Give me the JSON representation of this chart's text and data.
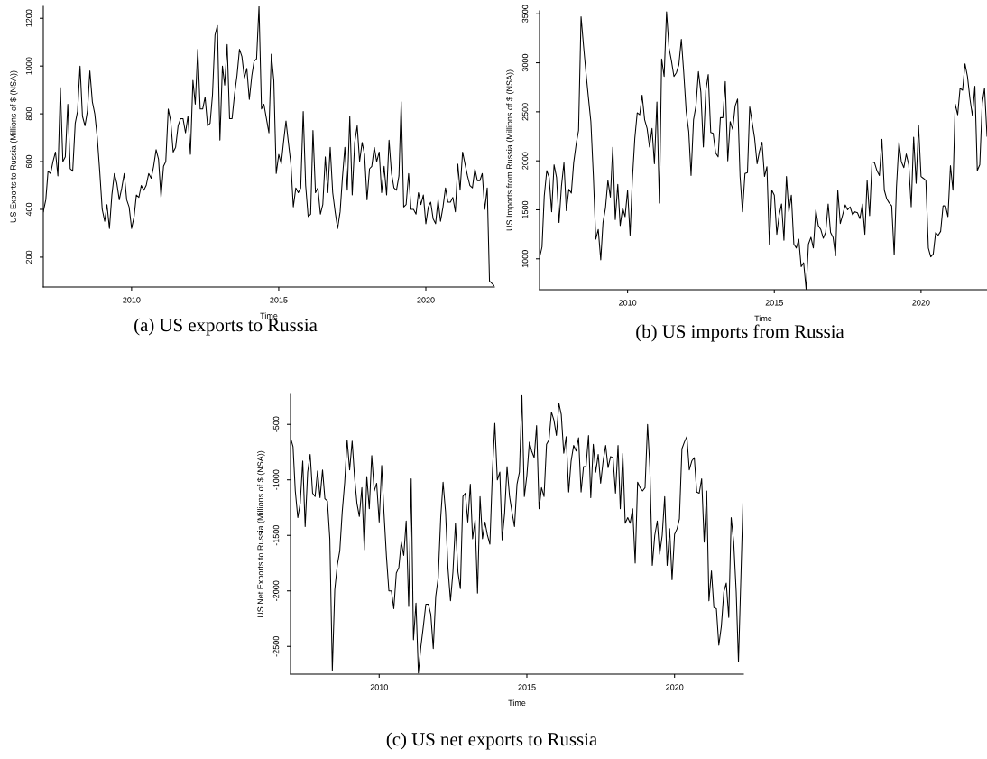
{
  "chart_data": [
    {
      "type": "line",
      "title": "(a) US exports to Russia",
      "xlabel": "Time",
      "ylabel": "US Exports to Russia (Millions of $ (NSA))",
      "x": [
        "2007-01",
        "2007-02",
        "2007-03",
        "2007-04",
        "2007-05",
        "2007-06",
        "2007-07",
        "2007-08",
        "2007-09",
        "2007-10",
        "2007-11",
        "2007-12",
        "2008-01",
        "2008-02",
        "2008-03",
        "2008-04",
        "2008-05",
        "2008-06",
        "2008-07",
        "2008-08",
        "2008-09",
        "2008-10",
        "2008-11",
        "2008-12",
        "2009-01",
        "2009-02",
        "2009-03",
        "2009-04",
        "2009-05",
        "2009-06",
        "2009-07",
        "2009-08",
        "2009-09",
        "2009-10",
        "2009-11",
        "2009-12",
        "2010-01",
        "2010-02",
        "2010-03",
        "2010-04",
        "2010-05",
        "2010-06",
        "2010-07",
        "2010-08",
        "2010-09",
        "2010-10",
        "2010-11",
        "2010-12",
        "2011-01",
        "2011-02",
        "2011-03",
        "2011-04",
        "2011-05",
        "2011-06",
        "2011-07",
        "2011-08",
        "2011-09",
        "2011-10",
        "2011-11",
        "2011-12",
        "2012-01",
        "2012-02",
        "2012-03",
        "2012-04",
        "2012-05",
        "2012-06",
        "2012-07",
        "2012-08",
        "2012-09",
        "2012-10",
        "2012-11",
        "2012-12",
        "2013-01",
        "2013-02",
        "2013-03",
        "2013-04",
        "2013-05",
        "2013-06",
        "2013-07",
        "2013-08",
        "2013-09",
        "2013-10",
        "2013-11",
        "2013-12",
        "2014-01",
        "2014-02",
        "2014-03",
        "2014-04",
        "2014-05",
        "2014-06",
        "2014-07",
        "2014-08",
        "2014-09",
        "2014-10",
        "2014-11",
        "2014-12",
        "2015-01",
        "2015-02",
        "2015-03",
        "2015-04",
        "2015-05",
        "2015-06",
        "2015-07",
        "2015-08",
        "2015-09",
        "2015-10",
        "2015-11",
        "2015-12",
        "2016-01",
        "2016-02",
        "2016-03",
        "2016-04",
        "2016-05",
        "2016-06",
        "2016-07",
        "2016-08",
        "2016-09",
        "2016-10",
        "2016-11",
        "2016-12",
        "2017-01",
        "2017-02",
        "2017-03",
        "2017-04",
        "2017-05",
        "2017-06",
        "2017-07",
        "2017-08",
        "2017-09",
        "2017-10",
        "2017-11",
        "2017-12",
        "2018-01",
        "2018-02",
        "2018-03",
        "2018-04",
        "2018-05",
        "2018-06",
        "2018-07",
        "2018-08",
        "2018-09",
        "2018-10",
        "2018-11",
        "2018-12",
        "2019-01",
        "2019-02",
        "2019-03",
        "2019-04",
        "2019-05",
        "2019-06",
        "2019-07",
        "2019-08",
        "2019-09",
        "2019-10",
        "2019-11",
        "2019-12",
        "2020-01",
        "2020-02",
        "2020-03",
        "2020-04",
        "2020-05",
        "2020-06",
        "2020-07",
        "2020-08",
        "2020-09",
        "2020-10",
        "2020-11",
        "2020-12",
        "2021-01",
        "2021-02",
        "2021-03",
        "2021-04",
        "2021-05",
        "2021-06",
        "2021-07",
        "2021-08",
        "2021-09",
        "2021-10",
        "2021-11",
        "2021-12",
        "2022-01",
        "2022-02",
        "2022-03",
        "2022-04",
        "2022-05"
      ],
      "series": [
        {
          "color": "#000000",
          "values": [
            390,
            440,
            560,
            550,
            600,
            640,
            540,
            910,
            600,
            620,
            840,
            570,
            560,
            760,
            810,
            1000,
            790,
            750,
            810,
            980,
            850,
            800,
            700,
            560,
            400,
            350,
            420,
            320,
            460,
            550,
            510,
            440,
            490,
            550,
            440,
            410,
            320,
            370,
            460,
            450,
            500,
            480,
            500,
            550,
            530,
            580,
            650,
            610,
            450,
            580,
            600,
            820,
            770,
            640,
            660,
            750,
            780,
            780,
            720,
            790,
            630,
            940,
            840,
            1070,
            820,
            820,
            870,
            750,
            760,
            880,
            1130,
            1170,
            690,
            1000,
            920,
            1090,
            780,
            780,
            880,
            960,
            1070,
            1040,
            950,
            990,
            860,
            960,
            1020,
            1030,
            1250,
            820,
            840,
            780,
            720,
            1050,
            940,
            550,
            630,
            590,
            680,
            770,
            680,
            590,
            410,
            490,
            470,
            490,
            810,
            500,
            370,
            380,
            730,
            470,
            490,
            380,
            420,
            620,
            470,
            660,
            470,
            390,
            320,
            390,
            530,
            660,
            480,
            790,
            460,
            680,
            750,
            600,
            680,
            630,
            440,
            570,
            580,
            660,
            600,
            640,
            470,
            580,
            460,
            690,
            550,
            490,
            480,
            540,
            850,
            410,
            420,
            550,
            400,
            400,
            380,
            470,
            420,
            460,
            340,
            410,
            430,
            360,
            340,
            440,
            350,
            410,
            490,
            430,
            430,
            450,
            390,
            590,
            480,
            640,
            590,
            540,
            500,
            490,
            570,
            520,
            520,
            550,
            400,
            490,
            100,
            90,
            80
          ]
        }
      ],
      "xlim": [
        "2007-01",
        "2022-05"
      ],
      "xticks": [
        {
          "value": "2010-01",
          "label": "2010"
        },
        {
          "value": "2015-01",
          "label": "2015"
        },
        {
          "value": "2020-01",
          "label": "2020"
        }
      ],
      "ylim": [
        75,
        1250
      ],
      "yticks": [
        200,
        400,
        600,
        800,
        1000,
        1200
      ]
    },
    {
      "type": "line",
      "title": "(b) US imports from Russia",
      "xlabel": "Time",
      "ylabel": "US Imports from Russia (Millions of $ (NSA))",
      "x": [
        "2007-01",
        "2007-02",
        "2007-03",
        "2007-04",
        "2007-05",
        "2007-06",
        "2007-07",
        "2007-08",
        "2007-09",
        "2007-10",
        "2007-11",
        "2007-12",
        "2008-01",
        "2008-02",
        "2008-03",
        "2008-04",
        "2008-05",
        "2008-06",
        "2008-07",
        "2008-08",
        "2008-09",
        "2008-10",
        "2008-11",
        "2008-12",
        "2009-01",
        "2009-02",
        "2009-03",
        "2009-04",
        "2009-05",
        "2009-06",
        "2009-07",
        "2009-08",
        "2009-09",
        "2009-10",
        "2009-11",
        "2009-12",
        "2010-01",
        "2010-02",
        "2010-03",
        "2010-04",
        "2010-05",
        "2010-06",
        "2010-07",
        "2010-08",
        "2010-09",
        "2010-10",
        "2010-11",
        "2010-12",
        "2011-01",
        "2011-02",
        "2011-03",
        "2011-04",
        "2011-05",
        "2011-06",
        "2011-07",
        "2011-08",
        "2011-09",
        "2011-10",
        "2011-11",
        "2011-12",
        "2012-01",
        "2012-02",
        "2012-03",
        "2012-04",
        "2012-05",
        "2012-06",
        "2012-07",
        "2012-08",
        "2012-09",
        "2012-10",
        "2012-11",
        "2012-12",
        "2013-01",
        "2013-02",
        "2013-03",
        "2013-04",
        "2013-05",
        "2013-06",
        "2013-07",
        "2013-08",
        "2013-09",
        "2013-10",
        "2013-11",
        "2013-12",
        "2014-01",
        "2014-02",
        "2014-03",
        "2014-04",
        "2014-05",
        "2014-06",
        "2014-07",
        "2014-08",
        "2014-09",
        "2014-10",
        "2014-11",
        "2014-12",
        "2015-01",
        "2015-02",
        "2015-03",
        "2015-04",
        "2015-05",
        "2015-06",
        "2015-07",
        "2015-08",
        "2015-09",
        "2015-10",
        "2015-11",
        "2015-12",
        "2016-01",
        "2016-02",
        "2016-03",
        "2016-04",
        "2016-05",
        "2016-06",
        "2016-07",
        "2016-08",
        "2016-09",
        "2016-10",
        "2016-11",
        "2016-12",
        "2017-01",
        "2017-02",
        "2017-03",
        "2017-04",
        "2017-05",
        "2017-06",
        "2017-07",
        "2017-08",
        "2017-09",
        "2017-10",
        "2017-11",
        "2017-12",
        "2018-01",
        "2018-02",
        "2018-03",
        "2018-04",
        "2018-05",
        "2018-06",
        "2018-07",
        "2018-08",
        "2018-09",
        "2018-10",
        "2018-11",
        "2018-12",
        "2019-01",
        "2019-02",
        "2019-03",
        "2019-04",
        "2019-05",
        "2019-06",
        "2019-07",
        "2019-08",
        "2019-09",
        "2019-10",
        "2019-11",
        "2019-12",
        "2020-01",
        "2020-02",
        "2020-03",
        "2020-04",
        "2020-05",
        "2020-06",
        "2020-07",
        "2020-08",
        "2020-09",
        "2020-10",
        "2020-11",
        "2020-12",
        "2021-01",
        "2021-02",
        "2021-03",
        "2021-04",
        "2021-05",
        "2021-06",
        "2021-07",
        "2021-08",
        "2021-09",
        "2021-10",
        "2021-11",
        "2021-12",
        "2022-01",
        "2022-02",
        "2022-03",
        "2022-04"
      ],
      "series": [
        {
          "color": "#000000",
          "values": [
            1010,
            1120,
            1640,
            1900,
            1830,
            1480,
            1960,
            1830,
            1370,
            1740,
            1980,
            1490,
            1710,
            1670,
            1980,
            2170,
            2310,
            3470,
            3180,
            2900,
            2640,
            2400,
            1850,
            1200,
            1300,
            990,
            1370,
            1520,
            1800,
            1630,
            2140,
            1400,
            1760,
            1340,
            1520,
            1430,
            1700,
            1240,
            1800,
            2230,
            2490,
            2470,
            2670,
            2420,
            2330,
            2140,
            2330,
            1970,
            2600,
            1570,
            3040,
            2860,
            3520,
            3150,
            3020,
            2860,
            2900,
            2980,
            3240,
            2900,
            2500,
            2300,
            1850,
            2420,
            2560,
            2910,
            2700,
            2140,
            2720,
            2880,
            2290,
            2280,
            2080,
            2040,
            2440,
            2440,
            2810,
            2000,
            2400,
            2320,
            2560,
            2630,
            1840,
            1480,
            1870,
            1880,
            2550,
            2390,
            2230,
            1970,
            2100,
            2190,
            1840,
            1940,
            1150,
            1700,
            1650,
            1250,
            1440,
            1560,
            1190,
            1840,
            1480,
            1650,
            1150,
            1110,
            1200,
            920,
            960,
            690,
            1150,
            1220,
            1110,
            1500,
            1340,
            1300,
            1210,
            1270,
            1560,
            1270,
            1220,
            1030,
            1700,
            1360,
            1450,
            1550,
            1500,
            1530,
            1450,
            1480,
            1470,
            1410,
            1560,
            1250,
            1800,
            1440,
            1990,
            1980,
            1900,
            1850,
            2220,
            1700,
            1610,
            1570,
            1540,
            1040,
            1730,
            2190,
            1990,
            1930,
            2070,
            1960,
            1530,
            2240,
            1770,
            2360,
            1840,
            1820,
            1800,
            1110,
            1020,
            1050,
            1270,
            1240,
            1280,
            1540,
            1540,
            1430,
            1950,
            1700,
            2580,
            2470,
            2740,
            2720,
            2990,
            2860,
            2630,
            2460,
            2760,
            1900,
            1960,
            2590,
            2740,
            2250
          ]
        }
      ],
      "xlim": [
        "2007-01",
        "2022-04"
      ],
      "xticks": [
        {
          "value": "2010-01",
          "label": "2010"
        },
        {
          "value": "2015-01",
          "label": "2015"
        },
        {
          "value": "2020-01",
          "label": "2020"
        }
      ],
      "ylim": [
        685,
        3530
      ],
      "yticks": [
        1000,
        1500,
        2000,
        2500,
        3000,
        3500
      ]
    },
    {
      "type": "line",
      "title": "(c) US net exports to Russia",
      "xlabel": "Time",
      "ylabel": "US Net Exports to Russia (Millions of $ (NSA))",
      "x": [
        "2007-01",
        "2007-02",
        "2007-03",
        "2007-04",
        "2007-05",
        "2007-06",
        "2007-07",
        "2007-08",
        "2007-09",
        "2007-10",
        "2007-11",
        "2007-12",
        "2008-01",
        "2008-02",
        "2008-03",
        "2008-04",
        "2008-05",
        "2008-06",
        "2008-07",
        "2008-08",
        "2008-09",
        "2008-10",
        "2008-11",
        "2008-12",
        "2009-01",
        "2009-02",
        "2009-03",
        "2009-04",
        "2009-05",
        "2009-06",
        "2009-07",
        "2009-08",
        "2009-09",
        "2009-10",
        "2009-11",
        "2009-12",
        "2010-01",
        "2010-02",
        "2010-03",
        "2010-04",
        "2010-05",
        "2010-06",
        "2010-07",
        "2010-08",
        "2010-09",
        "2010-10",
        "2010-11",
        "2010-12",
        "2011-01",
        "2011-02",
        "2011-03",
        "2011-04",
        "2011-05",
        "2011-06",
        "2011-07",
        "2011-08",
        "2011-09",
        "2011-10",
        "2011-11",
        "2011-12",
        "2012-01",
        "2012-02",
        "2012-03",
        "2012-04",
        "2012-05",
        "2012-06",
        "2012-07",
        "2012-08",
        "2012-09",
        "2012-10",
        "2012-11",
        "2012-12",
        "2013-01",
        "2013-02",
        "2013-03",
        "2013-04",
        "2013-05",
        "2013-06",
        "2013-07",
        "2013-08",
        "2013-09",
        "2013-10",
        "2013-11",
        "2013-12",
        "2014-01",
        "2014-02",
        "2014-03",
        "2014-04",
        "2014-05",
        "2014-06",
        "2014-07",
        "2014-08",
        "2014-09",
        "2014-10",
        "2014-11",
        "2014-12",
        "2015-01",
        "2015-02",
        "2015-03",
        "2015-04",
        "2015-05",
        "2015-06",
        "2015-07",
        "2015-08",
        "2015-09",
        "2015-10",
        "2015-11",
        "2015-12",
        "2016-01",
        "2016-02",
        "2016-03",
        "2016-04",
        "2016-05",
        "2016-06",
        "2016-07",
        "2016-08",
        "2016-09",
        "2016-10",
        "2016-11",
        "2016-12",
        "2017-01",
        "2017-02",
        "2017-03",
        "2017-04",
        "2017-05",
        "2017-06",
        "2017-07",
        "2017-08",
        "2017-09",
        "2017-10",
        "2017-11",
        "2017-12",
        "2018-01",
        "2018-02",
        "2018-03",
        "2018-04",
        "2018-05",
        "2018-06",
        "2018-07",
        "2018-08",
        "2018-09",
        "2018-10",
        "2018-11",
        "2018-12",
        "2019-01",
        "2019-02",
        "2019-03",
        "2019-04",
        "2019-05",
        "2019-06",
        "2019-07",
        "2019-08",
        "2019-09",
        "2019-10",
        "2019-11",
        "2019-12",
        "2020-01",
        "2020-02",
        "2020-03",
        "2020-04",
        "2020-05",
        "2020-06",
        "2020-07",
        "2020-08",
        "2020-09",
        "2020-10",
        "2020-11",
        "2020-12",
        "2021-01",
        "2021-02",
        "2021-03",
        "2021-04",
        "2021-05",
        "2021-06",
        "2021-07",
        "2021-08",
        "2021-09",
        "2021-10",
        "2021-11",
        "2021-12",
        "2022-01",
        "2022-02",
        "2022-03",
        "2022-04",
        "2022-05"
      ],
      "series": [
        {
          "color": "#000000",
          "values": [
            -620,
            -700,
            -1100,
            -1340,
            -1210,
            -830,
            -1420,
            -930,
            -770,
            -1120,
            -1150,
            -920,
            -1160,
            -910,
            -1170,
            -1190,
            -1530,
            -2720,
            -1990,
            -1770,
            -1640,
            -1290,
            -1020,
            -640,
            -910,
            -650,
            -960,
            -1210,
            -1330,
            -1070,
            -1630,
            -970,
            -1260,
            -780,
            -1100,
            -1030,
            -1380,
            -870,
            -1290,
            -1690,
            -2000,
            -2000,
            -2160,
            -1840,
            -1790,
            -1560,
            -1680,
            -1370,
            -2140,
            -990,
            -2440,
            -2110,
            -2740,
            -2500,
            -2320,
            -2120,
            -2120,
            -2210,
            -2520,
            -2050,
            -1880,
            -1340,
            -1020,
            -1290,
            -1800,
            -2090,
            -1830,
            -1390,
            -1830,
            -1980,
            -1150,
            -1120,
            -1380,
            -1040,
            -1530,
            -1360,
            -2020,
            -1150,
            -1530,
            -1380,
            -1500,
            -1580,
            -930,
            -490,
            -1000,
            -930,
            -1540,
            -1300,
            -880,
            -1150,
            -1290,
            -1420,
            -1040,
            -930,
            -240,
            -1150,
            -960,
            -660,
            -740,
            -800,
            -510,
            -1260,
            -1070,
            -1150,
            -680,
            -640,
            -390,
            -460,
            -600,
            -310,
            -410,
            -760,
            -610,
            -1110,
            -830,
            -690,
            -740,
            -620,
            -1110,
            -880,
            -880,
            -600,
            -1160,
            -680,
            -930,
            -770,
            -1030,
            -830,
            -690,
            -890,
            -790,
            -800,
            -1120,
            -690,
            -1260,
            -760,
            -1390,
            -1340,
            -1390,
            -1260,
            -1750,
            -1020,
            -1070,
            -1100,
            -1070,
            -500,
            -880,
            -1770,
            -1500,
            -1370,
            -1670,
            -1500,
            -1150,
            -1770,
            -1440,
            -1900,
            -1490,
            -1440,
            -1350,
            -720,
            -660,
            -610,
            -910,
            -830,
            -800,
            -1110,
            -1120,
            -990,
            -1560,
            -1100,
            -2090,
            -1820,
            -2150,
            -2160,
            -2490,
            -2320,
            -2010,
            -1930,
            -2240,
            -1340,
            -1560,
            -2010,
            -2640,
            -1850,
            -1060
          ]
        }
      ],
      "xlim": [
        "2007-01",
        "2022-05"
      ],
      "xticks": [
        {
          "value": "2010-01",
          "label": "2010"
        },
        {
          "value": "2015-01",
          "label": "2015"
        },
        {
          "value": "2020-01",
          "label": "2020"
        }
      ],
      "ylim": [
        -2750,
        -230
      ],
      "yticks": [
        -2500,
        -2000,
        -1500,
        -1000,
        -500
      ]
    }
  ]
}
